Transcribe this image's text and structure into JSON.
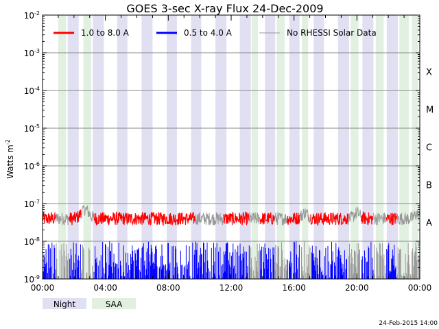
{
  "chart_data": {
    "type": "line",
    "title": "GOES 3-sec X-ray Flux   24-Dec-2009",
    "ylabel": "Watts m",
    "ylabel_sup": "-2",
    "y_scale": "log",
    "ylim": [
      1e-09,
      0.01
    ],
    "y_ticks": [
      {
        "base": "10",
        "exp": "-9"
      },
      {
        "base": "10",
        "exp": "-8"
      },
      {
        "base": "10",
        "exp": "-7"
      },
      {
        "base": "10",
        "exp": "-6"
      },
      {
        "base": "10",
        "exp": "-5"
      },
      {
        "base": "10",
        "exp": "-4"
      },
      {
        "base": "10",
        "exp": "-3"
      },
      {
        "base": "10",
        "exp": "-2"
      }
    ],
    "x_ticks": [
      "00:00",
      "04:00",
      "08:00",
      "12:00",
      "16:00",
      "20:00",
      "00:00"
    ],
    "xlim_hours": [
      0,
      24
    ],
    "flare_classes": [
      {
        "label": "A",
        "exponent": -8
      },
      {
        "label": "B",
        "exponent": -7
      },
      {
        "label": "C",
        "exponent": -6
      },
      {
        "label": "M",
        "exponent": -5
      },
      {
        "label": "X",
        "exponent": -4
      }
    ],
    "grid": true,
    "legend_position": "top",
    "series": [
      {
        "name": "1.0 to 8.0 A",
        "color": "#ff0000",
        "typical_log10_flux": -7.4,
        "range_log10_flux": [
          -7.7,
          -7.05
        ]
      },
      {
        "name": "0.5 to 4.0 A",
        "color": "#0000ff",
        "typical_log10_flux": -8.6,
        "range_log10_flux": [
          -9.0,
          -8.0
        ]
      },
      {
        "name": "No RHESSI Solar Data",
        "color": "#999999"
      }
    ],
    "night_intervals_hours": [
      [
        1.6,
        2.3
      ],
      [
        3.2,
        3.9
      ],
      [
        4.75,
        5.4
      ],
      [
        6.3,
        7.0
      ],
      [
        7.9,
        8.55
      ],
      [
        9.45,
        10.1
      ],
      [
        11.0,
        11.7
      ],
      [
        12.55,
        13.25
      ],
      [
        14.15,
        14.8
      ],
      [
        15.7,
        16.35
      ],
      [
        17.25,
        17.9
      ],
      [
        18.8,
        19.5
      ],
      [
        20.35,
        21.05
      ],
      [
        21.9,
        22.6
      ]
    ],
    "saa_intervals_hours": [
      [
        1.0,
        1.5
      ],
      [
        2.6,
        3.1
      ],
      [
        13.3,
        13.7
      ],
      [
        14.9,
        15.4
      ],
      [
        16.5,
        16.9
      ],
      [
        19.6,
        20.1
      ],
      [
        21.2,
        21.7
      ],
      [
        22.7,
        23.3
      ],
      [
        23.5,
        23.9
      ]
    ],
    "footer_legend": [
      {
        "label": "Night",
        "color": "#e0e0f2"
      },
      {
        "label": "SAA",
        "color": "#e2f0e2"
      }
    ],
    "timestamp": "24-Feb-2015 14:00"
  }
}
